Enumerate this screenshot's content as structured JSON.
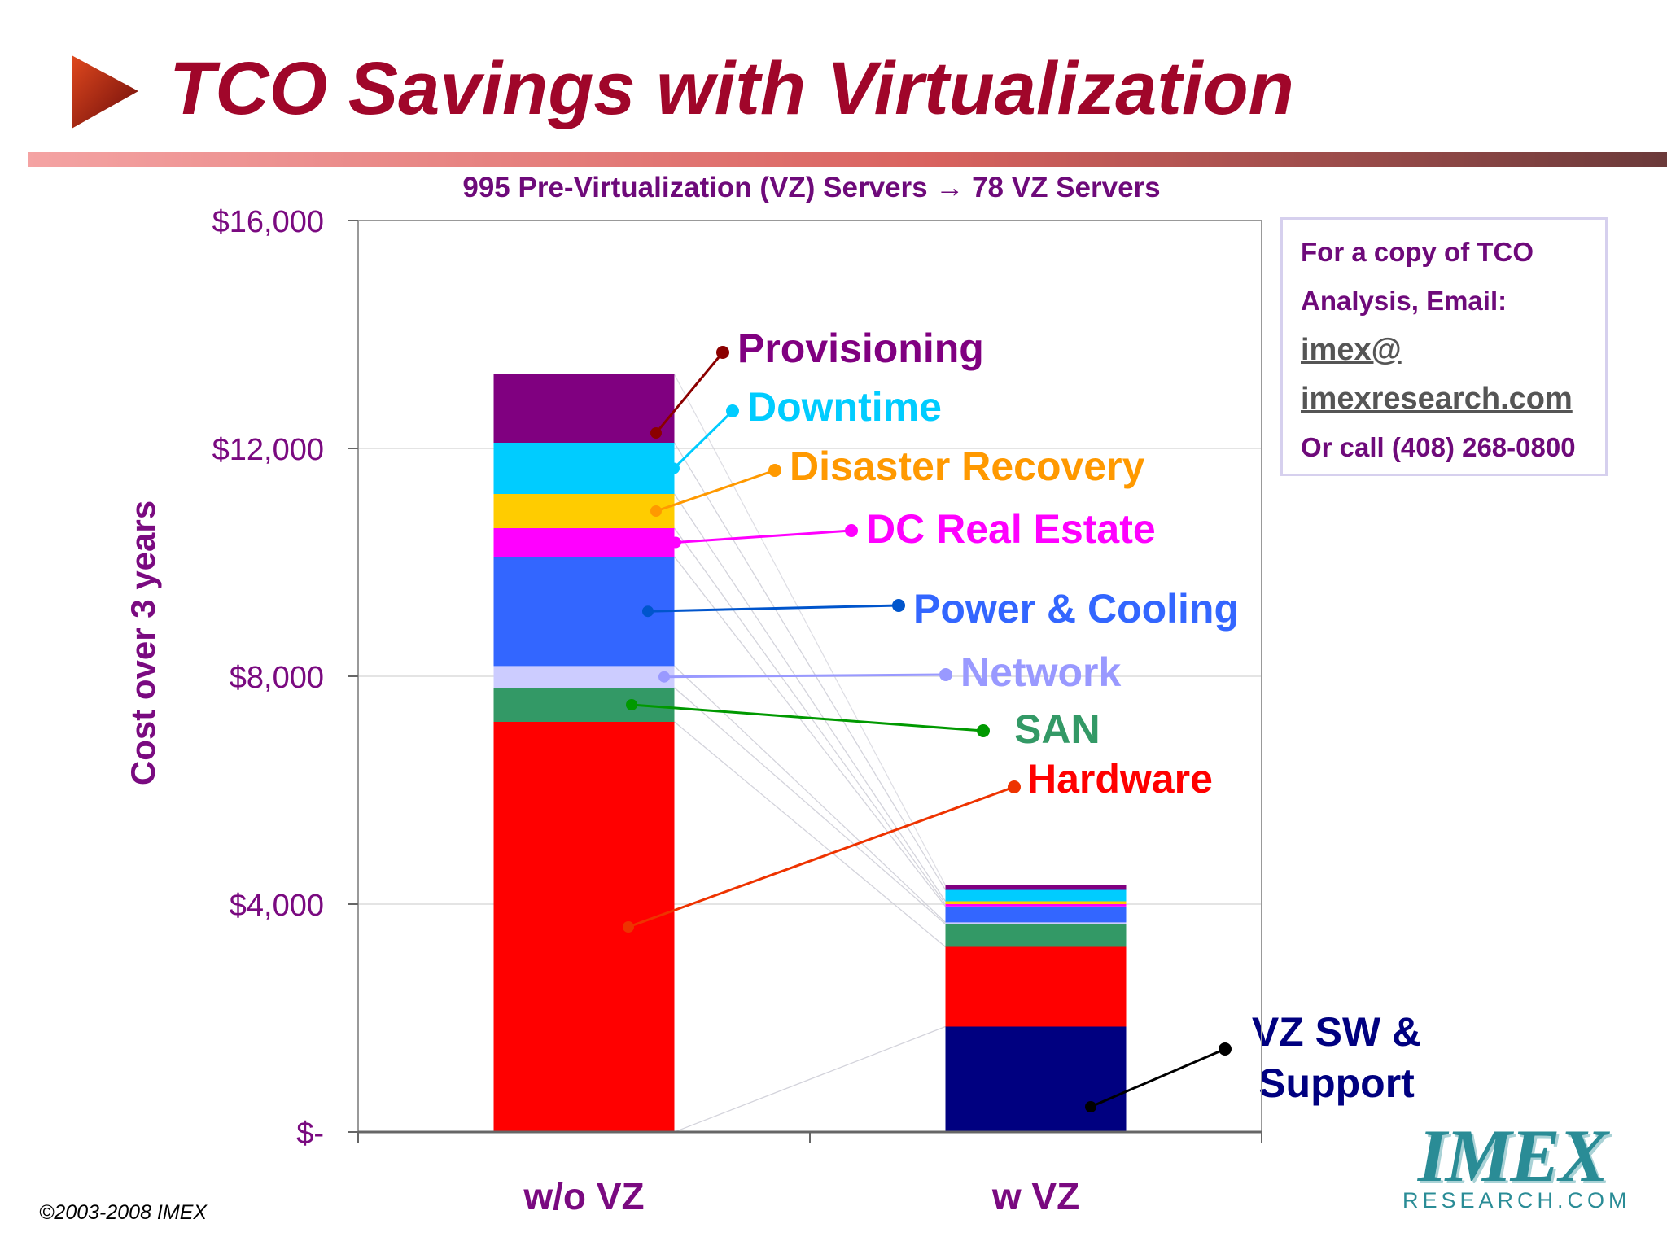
{
  "slide": {
    "title": "TCO Savings with Virtualization",
    "copyright": "©2003-2008 IMEX",
    "logo_main": "IMEX",
    "logo_sub": "RESEARCH.COM",
    "colors": {
      "title": "#a0062a",
      "text_purple": "#7a0a80",
      "accent_bar": "#c2185b"
    }
  },
  "infobox": {
    "line1": "For a copy of TCO",
    "line2": "Analysis, Email:",
    "email_part1": "imex@",
    "email_part2": "imexresearch.com",
    "phone": "Or call (408) 268-0800"
  },
  "chart_data": {
    "type": "bar",
    "stacked": true,
    "subtitle": "995 Pre-Virtualization (VZ) Servers → 78 VZ Servers",
    "ylabel": "Cost over 3 years",
    "xlabel": "",
    "ylim": [
      0,
      16000
    ],
    "yticks": [
      {
        "value": 0,
        "label": "$-"
      },
      {
        "value": 4000,
        "label": "$4,000"
      },
      {
        "value": 8000,
        "label": "$8,000"
      },
      {
        "value": 12000,
        "label": "$12,000"
      },
      {
        "value": 16000,
        "label": "$16,000"
      }
    ],
    "grid": true,
    "categories": [
      "w/o VZ",
      "w VZ"
    ],
    "series": [
      {
        "name": "VZ SW & Support",
        "color": "#000080",
        "label_color": "#000080",
        "values": [
          0,
          1850
        ]
      },
      {
        "name": "Hardware",
        "color": "#ff0000",
        "label_color": "#ff0000",
        "values": [
          7200,
          1400
        ]
      },
      {
        "name": "SAN",
        "color": "#339966",
        "label_color": "#339966",
        "values": [
          600,
          400
        ]
      },
      {
        "name": "Network",
        "color": "#ccccff",
        "label_color": "#9999ff",
        "values": [
          380,
          30
        ]
      },
      {
        "name": "Power & Cooling",
        "color": "#3366ff",
        "label_color": "#3366ff",
        "values": [
          1920,
          280
        ]
      },
      {
        "name": "DC Real Estate",
        "color": "#ff00ff",
        "label_color": "#ff00ff",
        "values": [
          500,
          40
        ]
      },
      {
        "name": "Disaster Recovery",
        "color": "#ffcc00",
        "label_color": "#ff9900",
        "values": [
          600,
          50
        ]
      },
      {
        "name": "Downtime",
        "color": "#00ccff",
        "label_color": "#00ccff",
        "values": [
          900,
          200
        ]
      },
      {
        "name": "Provisioning",
        "color": "#800080",
        "label_color": "#800080",
        "values": [
          1200,
          80
        ]
      }
    ]
  }
}
